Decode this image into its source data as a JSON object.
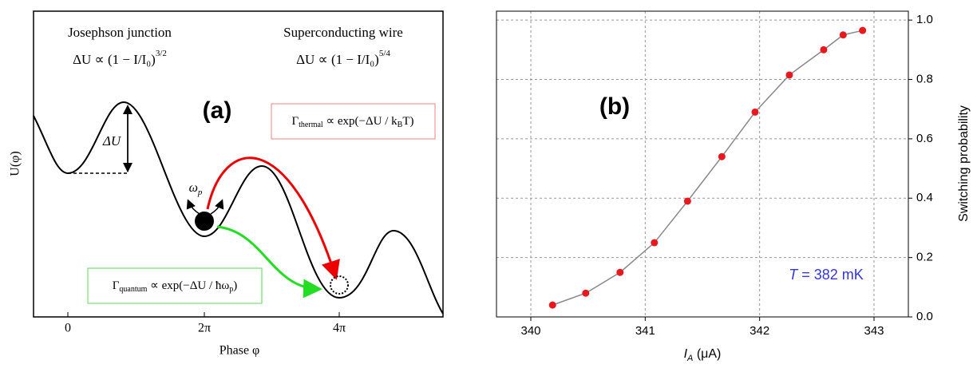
{
  "panel_a": {
    "label": "(a)",
    "left_title": "Josephson junction",
    "left_formula": {
      "base": "ΔU ∝ (1 − I/I₀)",
      "exponent": "3/2"
    },
    "right_title": "Superconducting wire",
    "right_formula": {
      "base": "ΔU ∝ (1 − I/I₀)",
      "exponent": "5/4"
    },
    "thermal_rate": {
      "symbol": "Γ",
      "subscript": "thermal",
      "rhs": " ∝ exp(−ΔU / k",
      "rhs_subscript": "B",
      "rhs_end": "T)"
    },
    "quantum_rate": {
      "symbol": "Γ",
      "subscript": "quantum",
      "rhs": " ∝ exp(−ΔU / ħω",
      "rhs_subscript": "p",
      "rhs_end": ")"
    },
    "barrier_label": "ΔU",
    "frequency_label": {
      "symbol": "ω",
      "subscript": "p"
    },
    "y_label": "U(φ)",
    "x_label": "Phase φ",
    "x_tick_labels": [
      "0",
      "2π",
      "4π"
    ]
  },
  "chart_data": {
    "type": "line",
    "panel_label": "(b)",
    "x_label": {
      "symbol": "I",
      "subscript": "A",
      "rest": " (μA)"
    },
    "y_label": "Switching probability",
    "annotation": {
      "symbol": "T",
      "text": " = 382 mK",
      "color": "#3333ee"
    },
    "x": [
      340.19,
      340.48,
      340.78,
      341.08,
      341.37,
      341.67,
      341.96,
      342.26,
      342.56,
      342.73,
      342.9
    ],
    "series": [
      {
        "color": "#e8191e",
        "values": [
          0.04,
          0.08,
          0.15,
          0.25,
          0.39,
          0.54,
          0.69,
          0.815,
          0.9,
          0.95,
          0.965
        ]
      }
    ],
    "line_color": "#888888",
    "xlim": [
      339.7,
      343.3
    ],
    "ylim": [
      0,
      1.03
    ],
    "xticks": [
      340,
      341,
      342,
      343
    ],
    "yticks": [
      {
        "value": 0,
        "label": "0.0"
      },
      0.2,
      0.4,
      0.6,
      0.8,
      {
        "value": 1,
        "label": "1.0"
      }
    ],
    "grid": true,
    "y_axis_side": "right"
  }
}
